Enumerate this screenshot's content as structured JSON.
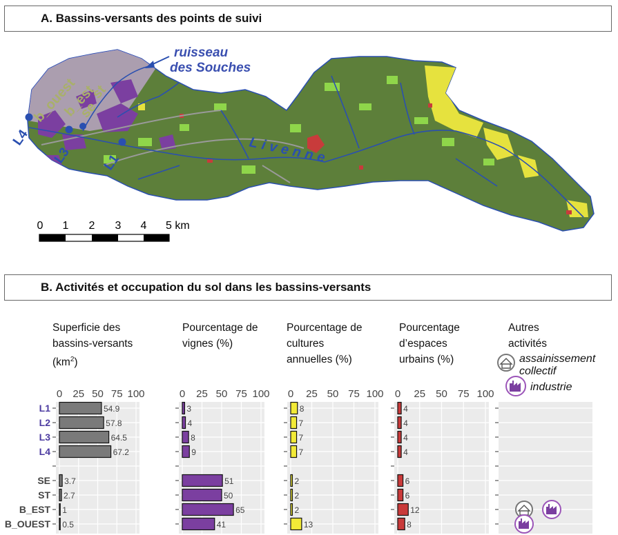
{
  "section_a": {
    "title": "A. Bassins-versants des points de suivi"
  },
  "section_b": {
    "title": "B. Activités et occupation du sol dans les bassins-versants"
  },
  "map": {
    "stream_label_1": "ruisseau",
    "stream_label_2": "des Souches",
    "river_label": "Livenne",
    "basins": [
      "b_ouest",
      "b_est",
      "se",
      "st"
    ],
    "points": [
      "L4",
      "L3",
      "L1"
    ],
    "scale_ticks": [
      "0",
      "1",
      "2",
      "3",
      "4",
      "5 km"
    ],
    "colors": {
      "watershed": "#5d7f3a",
      "vineyard": "#7b3fa0",
      "crops": "#e6e23e",
      "urban": "#c83b3b",
      "river": "#2a4fb0"
    }
  },
  "panels": {
    "area_header": [
      "Superficie des",
      "bassins-versants",
      "(km",
      "2",
      ")"
    ],
    "vines_header": [
      "Pourcentage de",
      "vignes (%)"
    ],
    "crops_header": [
      "Pourcentage de",
      "cultures",
      "annuelles (%)"
    ],
    "urban_header": [
      "Pourcentage",
      "d’espaces",
      "urbains (%)"
    ],
    "other_header": [
      "Autres",
      "activités"
    ],
    "legend_sanitation": [
      "assainissement",
      "collectif"
    ],
    "legend_industry": "industrie"
  },
  "chart_data": {
    "type": "bar",
    "categories": [
      "L1",
      "L2",
      "L3",
      "L4",
      "SE",
      "ST",
      "B_EST",
      "B_OUEST"
    ],
    "axis_ticks": [
      0,
      25,
      50,
      75,
      100
    ],
    "xlim": [
      0,
      100
    ],
    "series": [
      {
        "values": [
          54.9,
          57.8,
          64.5,
          67.2,
          3.7,
          2.7,
          1,
          0.5
        ],
        "labels": [
          "54.9",
          "57.8",
          "64.5",
          "67.2",
          "3.7",
          "2.7",
          "1",
          "0.5"
        ],
        "color": "#7a7a7a"
      },
      {
        "values": [
          3,
          4,
          8,
          9,
          51,
          50,
          65,
          41
        ],
        "labels": [
          "3",
          "4",
          "8",
          "9",
          "51",
          "50",
          "65",
          "41"
        ],
        "color": "#7b3fa0"
      },
      {
        "values": [
          8,
          7,
          7,
          7,
          2,
          2,
          2,
          13
        ],
        "labels": [
          "8",
          "7",
          "7",
          "7",
          "2",
          "2",
          "2",
          "13"
        ],
        "color": "#f2ea37"
      },
      {
        "values": [
          4,
          4,
          4,
          4,
          6,
          6,
          12,
          8
        ],
        "labels": [
          "4",
          "4",
          "4",
          "4",
          "6",
          "6",
          "12",
          "8"
        ],
        "color": "#c93a3a"
      }
    ],
    "other_activities": {
      "B_EST": [
        "sanitation",
        "industry"
      ],
      "B_OUEST": [
        "industry"
      ]
    }
  }
}
